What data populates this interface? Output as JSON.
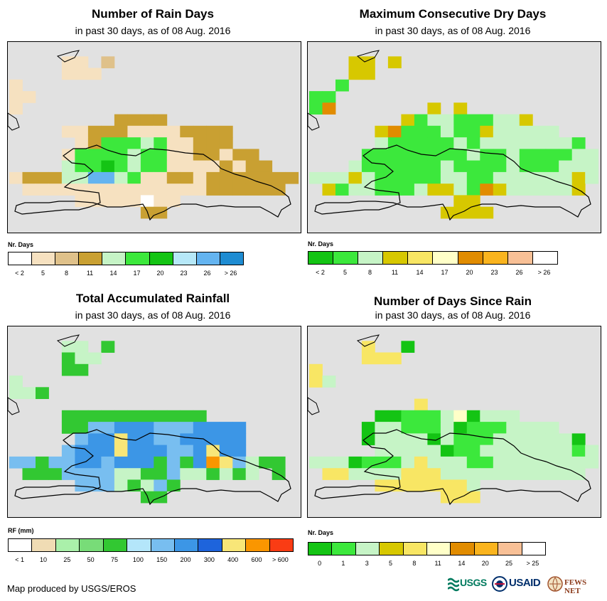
{
  "panels": [
    {
      "title": "Number of Rain Days",
      "subtitle": "in past 30 days, as of 08 Aug. 2016",
      "legend_title": "Nr. Days",
      "legend_labels": [
        "< 2",
        "5",
        "8",
        "11",
        "14",
        "17",
        "20",
        "23",
        "26",
        "> 26"
      ],
      "legend_colors": [
        "#ffffff",
        "#f6e1c0",
        "#dfc18a",
        "#c9a032",
        "#c6f4c6",
        "#3ce83c",
        "#14c414",
        "#b6e8f8",
        "#64b4f0",
        "#1e8cd2"
      ]
    },
    {
      "title": "Maximum Consecutive Dry Days",
      "subtitle": "in past 30 days, as of 08 Aug. 2016",
      "legend_title": "Nr. Days",
      "legend_labels": [
        "< 2",
        "5",
        "8",
        "11",
        "14",
        "17",
        "20",
        "23",
        "26",
        "> 26"
      ],
      "legend_colors": [
        "#14c414",
        "#3ce83c",
        "#c6f4c6",
        "#d7c800",
        "#f8e664",
        "#ffffc8",
        "#e18c00",
        "#fab41e",
        "#f8c096",
        "#ffffff"
      ]
    },
    {
      "title": "Total Accumulated Rainfall",
      "subtitle": "in past 30 days, as of 08 Aug. 2016",
      "legend_title": "RF (mm)",
      "legend_labels": [
        "< 1",
        "10",
        "25",
        "50",
        "75",
        "100",
        "150",
        "200",
        "300",
        "400",
        "600",
        "> 600"
      ],
      "legend_colors": [
        "#ffffff",
        "#f0dcb4",
        "#aaf0aa",
        "#78dc78",
        "#32c832",
        "#b4e6fa",
        "#78bef0",
        "#3c96e6",
        "#1e64dc",
        "#f8e678",
        "#fa9600",
        "#fa3c14"
      ]
    },
    {
      "title": "Number of Days Since Rain",
      "subtitle": "in past 30 days, as of 08 Aug. 2016",
      "legend_title": "Nr. Days",
      "legend_labels": [
        "0",
        "1",
        "3",
        "5",
        "8",
        "11",
        "14",
        "20",
        "25",
        "> 25"
      ],
      "legend_colors": [
        "#14c414",
        "#3ce83c",
        "#c6f4c6",
        "#d7c800",
        "#f8e664",
        "#ffffc8",
        "#e18c00",
        "#fab41e",
        "#f8c096",
        "#ffffff"
      ]
    }
  ],
  "credit": "Map produced by USGS/EROS",
  "logos": {
    "usgs": "USGS",
    "usaid": "USAID",
    "fewsnet": "FEWS NET"
  }
}
